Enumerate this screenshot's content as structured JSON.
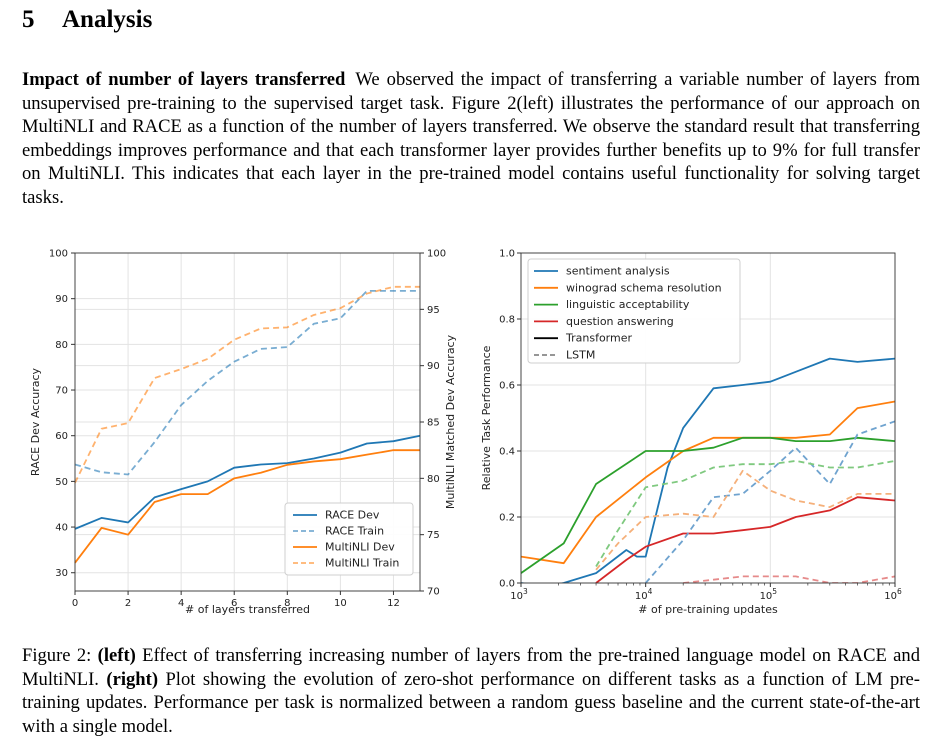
{
  "section": {
    "number": "5",
    "title": "Analysis"
  },
  "paragraph": {
    "runin": "Impact of number of layers transferred",
    "text": "We observed the impact of transferring a variable number of layers from unsupervised pre-training to the supervised target task. Figure 2(left) illustrates the performance of our approach on MultiNLI and RACE as a function of the number of layers transferred. We observe the standard result that transferring embeddings improves performance and that each transformer layer provides further benefits up to 9% for full transfer on MultiNLI. This indicates that each layer in the pre-trained model contains useful functionality for solving target tasks."
  },
  "caption": {
    "prefix": "Figure 2: ",
    "left_tag": "(left)",
    "left_text": " Effect of transferring increasing number of layers from the pre-trained language model on RACE and MultiNLI. ",
    "right_tag": "(right)",
    "right_text": " Plot showing the evolution of zero-shot performance on different tasks as a function of LM pre-training updates. Performance per task is normalized between a random guess baseline and the current state-of-the-art with a single model."
  },
  "chart_data": [
    {
      "type": "line",
      "xlabel": "# of layers transferred",
      "ylabel_left": "RACE Dev Accuracy",
      "ylabel_right": "MultiNLI Matched Dev Accuracy",
      "xlim": [
        0,
        13
      ],
      "ylim_left": [
        26,
        100
      ],
      "ylim_right": [
        70,
        100
      ],
      "xticks": [
        0,
        2,
        4,
        6,
        8,
        10,
        12
      ],
      "yticks_left": [
        30,
        40,
        50,
        60,
        70,
        80,
        90,
        100
      ],
      "yticks_right": [
        70,
        75,
        80,
        85,
        90,
        95,
        100
      ],
      "grid": true,
      "legend_position": "lower-right",
      "x": [
        0,
        1,
        2,
        3,
        4,
        5,
        6,
        7,
        8,
        9,
        10,
        11,
        12,
        13
      ],
      "series": [
        {
          "name": "RACE Dev",
          "axis": "left",
          "style": "solid",
          "color": "#1f77b4",
          "values": [
            39.6,
            42.0,
            41.0,
            46.5,
            48.3,
            50.0,
            53.0,
            53.7,
            54.0,
            55.0,
            56.3,
            58.3,
            58.8,
            60.0
          ]
        },
        {
          "name": "RACE Train",
          "axis": "left",
          "style": "dashed",
          "color": "#1f77b4",
          "values": [
            53.7,
            52.0,
            51.5,
            58.6,
            66.7,
            72.0,
            76.2,
            79.0,
            79.4,
            84.5,
            85.7,
            91.7,
            91.7,
            91.7
          ]
        },
        {
          "name": "MultiNLI Dev",
          "axis": "right",
          "style": "solid",
          "color": "#ff7f0e",
          "values": [
            72.5,
            75.6,
            75.0,
            77.9,
            78.6,
            78.6,
            80.0,
            80.5,
            81.2,
            81.5,
            81.7,
            82.1,
            82.5,
            82.5
          ]
        },
        {
          "name": "MultiNLI Train",
          "axis": "right",
          "style": "dashed",
          "color": "#ff7f0e",
          "values": [
            79.6,
            84.4,
            84.9,
            88.9,
            89.7,
            90.6,
            92.3,
            93.3,
            93.4,
            94.5,
            95.1,
            96.4,
            97.0,
            97.0
          ]
        }
      ]
    },
    {
      "type": "line",
      "xlabel": "# of pre-training updates",
      "ylabel": "Relative Task Performance",
      "xscale": "log",
      "xlim": [
        1000,
        1000000
      ],
      "ylim": [
        0.0,
        1.0
      ],
      "xtick_base": "10",
      "xtick_exponents": [
        "3",
        "4",
        "5",
        "6"
      ],
      "xtick_values": [
        1000,
        10000,
        100000,
        1000000
      ],
      "yticks": [
        "0.0",
        "0.2",
        "0.4",
        "0.6",
        "0.8",
        "1.0"
      ],
      "ytick_values": [
        0.0,
        0.2,
        0.4,
        0.6,
        0.8,
        1.0
      ],
      "grid": true,
      "legend_position": "top-left",
      "legend": [
        {
          "label": "sentiment analysis",
          "color": "#1f77b4",
          "style": "solid"
        },
        {
          "label": "winograd schema resolution",
          "color": "#ff7f0e",
          "style": "solid"
        },
        {
          "label": "linguistic acceptability",
          "color": "#2ca02c",
          "style": "solid"
        },
        {
          "label": "question answering",
          "color": "#d62728",
          "style": "solid"
        },
        {
          "label": "Transformer",
          "color": "#000000",
          "style": "solid"
        },
        {
          "label": "LSTM",
          "color": "#888888",
          "style": "dashed"
        }
      ],
      "series": [
        {
          "task": "sentiment analysis",
          "model": "Transformer",
          "color": "#1f77b4",
          "style": "solid",
          "x": [
            1000,
            1600,
            2200,
            4000,
            7000,
            8500,
            10000,
            15000,
            20000,
            35000,
            60000,
            100000,
            160000,
            300000,
            500000,
            1000000
          ],
          "y": [
            0.0,
            -0.01,
            0.0,
            0.03,
            0.1,
            0.08,
            0.08,
            0.35,
            0.47,
            0.59,
            0.6,
            0.61,
            0.64,
            0.68,
            0.67,
            0.68
          ]
        },
        {
          "task": "winograd schema resolution",
          "model": "Transformer",
          "color": "#ff7f0e",
          "style": "solid",
          "x": [
            1000,
            2200,
            4000,
            10000,
            20000,
            35000,
            60000,
            100000,
            160000,
            300000,
            500000,
            1000000
          ],
          "y": [
            0.08,
            0.06,
            0.2,
            0.32,
            0.4,
            0.44,
            0.44,
            0.44,
            0.44,
            0.45,
            0.53,
            0.55
          ]
        },
        {
          "task": "linguistic acceptability",
          "model": "Transformer",
          "color": "#2ca02c",
          "style": "solid",
          "x": [
            1000,
            2200,
            4000,
            10000,
            20000,
            35000,
            60000,
            100000,
            160000,
            300000,
            500000,
            1000000
          ],
          "y": [
            0.03,
            0.12,
            0.3,
            0.4,
            0.4,
            0.41,
            0.44,
            0.44,
            0.43,
            0.43,
            0.44,
            0.43
          ]
        },
        {
          "task": "question answering",
          "model": "Transformer",
          "color": "#d62728",
          "style": "solid",
          "x": [
            4000,
            7000,
            10000,
            20000,
            35000,
            60000,
            100000,
            160000,
            300000,
            500000,
            1000000
          ],
          "y": [
            0.0,
            0.07,
            0.11,
            0.15,
            0.15,
            0.16,
            0.17,
            0.2,
            0.22,
            0.26,
            0.25
          ]
        },
        {
          "task": "sentiment analysis",
          "model": "LSTM",
          "color": "#6fa3cf",
          "style": "dashed",
          "x": [
            10000,
            20000,
            35000,
            60000,
            100000,
            160000,
            300000,
            500000,
            1000000
          ],
          "y": [
            0.0,
            0.13,
            0.26,
            0.27,
            0.34,
            0.41,
            0.3,
            0.45,
            0.49
          ]
        },
        {
          "task": "winograd schema resolution",
          "model": "LSTM",
          "color": "#f5b07a",
          "style": "dashed",
          "x": [
            4000,
            6000,
            10000,
            20000,
            35000,
            60000,
            100000,
            160000,
            300000,
            500000,
            1000000
          ],
          "y": [
            0.04,
            0.12,
            0.2,
            0.21,
            0.2,
            0.34,
            0.28,
            0.25,
            0.23,
            0.27,
            0.27
          ]
        },
        {
          "task": "linguistic acceptability",
          "model": "LSTM",
          "color": "#7fc97f",
          "style": "dashed",
          "x": [
            4000,
            6000,
            10000,
            20000,
            35000,
            60000,
            100000,
            160000,
            300000,
            500000,
            1000000
          ],
          "y": [
            0.05,
            0.16,
            0.29,
            0.31,
            0.35,
            0.36,
            0.36,
            0.37,
            0.35,
            0.35,
            0.37
          ]
        },
        {
          "task": "question answering",
          "model": "LSTM",
          "color": "#e68a8a",
          "style": "dashed",
          "x": [
            20000,
            35000,
            60000,
            100000,
            160000,
            300000,
            500000,
            1000000
          ],
          "y": [
            0.0,
            0.01,
            0.02,
            0.02,
            0.02,
            0.0,
            0.0,
            0.02
          ]
        }
      ]
    }
  ]
}
